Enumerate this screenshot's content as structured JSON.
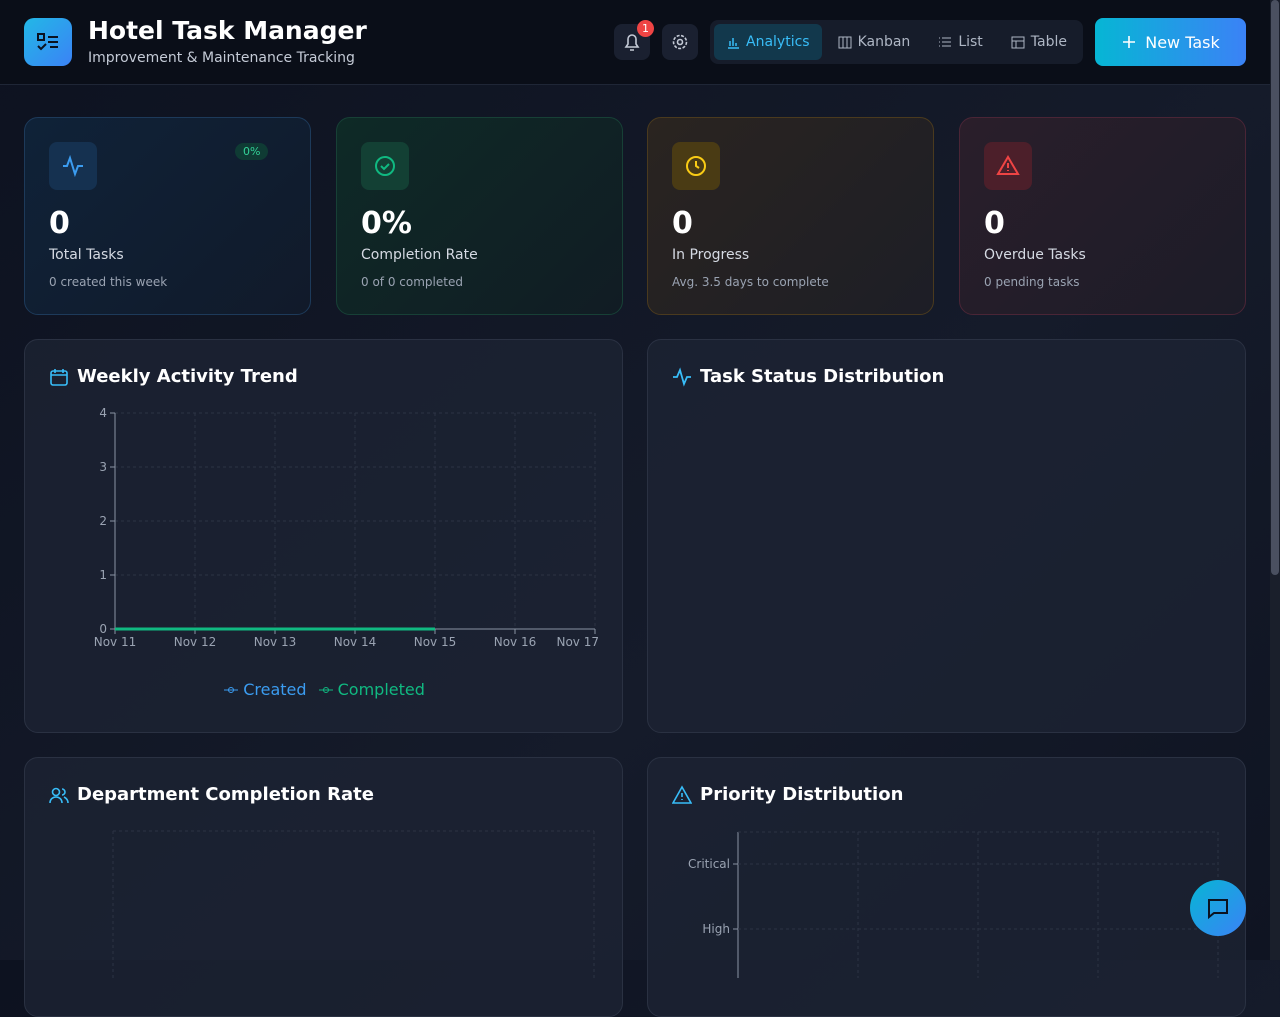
{
  "header": {
    "title": "Hotel Task Manager",
    "subtitle": "Improvement & Maintenance Tracking",
    "notifications": 1,
    "views": [
      "Analytics",
      "Kanban",
      "List",
      "Table"
    ],
    "new_task": "New Task"
  },
  "stats": [
    {
      "value": "0",
      "change": "0%",
      "label": "Total Tasks",
      "note": "0 created this week"
    },
    {
      "value": "0%",
      "label": "Completion Rate",
      "note": "0 of 0 completed"
    },
    {
      "value": "0",
      "label": "In Progress",
      "note": "Avg. 3.5 days to complete"
    },
    {
      "value": "0",
      "label": "Overdue Tasks",
      "note": "0 pending tasks"
    }
  ],
  "panels": [
    "Weekly Activity Trend",
    "Task Status Distribution",
    "Department Completion Rate",
    "Priority Distribution"
  ],
  "weekly_activity": {
    "type": "line",
    "categories": [
      "Nov 11",
      "Nov 12",
      "Nov 13",
      "Nov 14",
      "Nov 15",
      "Nov 16",
      "Nov 17"
    ],
    "ylim": [
      0,
      4
    ],
    "yticks": [
      0,
      1,
      2,
      3,
      4
    ],
    "grid": true,
    "series": [
      {
        "name": "Created",
        "color": "#3b9cf0",
        "values": [
          0,
          0,
          0,
          0,
          0,
          null,
          null
        ]
      },
      {
        "name": "Completed",
        "color": "#10b981",
        "values": [
          0,
          0,
          0,
          0,
          0,
          null,
          null
        ]
      }
    ]
  },
  "priority": {
    "type": "bar",
    "categories": [
      "Critical",
      "High"
    ]
  }
}
